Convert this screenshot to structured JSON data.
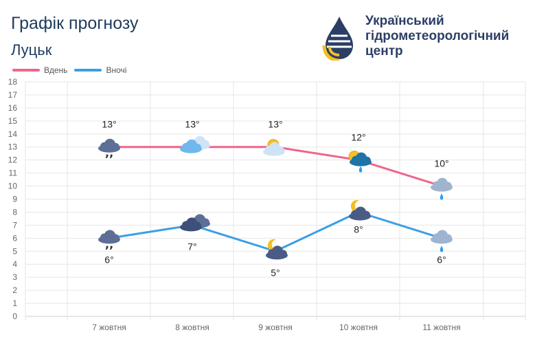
{
  "header": {
    "title": "Графік прогнозу",
    "city": "Луцьк"
  },
  "logo": {
    "line1": "Український",
    "line2": "гідрометеорологічний",
    "line3": "центр"
  },
  "chart_data": {
    "type": "line",
    "categories": [
      "7 жовтня",
      "8 жовтня",
      "9 жовтня",
      "10 жовтня",
      "11 жовтня"
    ],
    "series": [
      {
        "name": "Вдень",
        "color": "#f0648a",
        "values": [
          13,
          13,
          13,
          12,
          10
        ],
        "labels": [
          "13°",
          "13°",
          "13°",
          "12°",
          "10°"
        ],
        "icons": [
          "cloud-drizzle-icon",
          "cloud-sun-icon",
          "partly-cloudy-icon",
          "sun-cloud-rain-icon",
          "cloud-rain-icon"
        ]
      },
      {
        "name": "Вночі",
        "color": "#3b9fe4",
        "values": [
          6,
          7,
          5,
          8,
          6
        ],
        "labels": [
          "6°",
          "7°",
          "5°",
          "8°",
          "6°"
        ],
        "icons": [
          "cloud-drizzle-icon",
          "cloud-icon",
          "moon-cloud-icon",
          "moon-cloud-icon",
          "cloud-rain-icon"
        ]
      }
    ],
    "ylim": [
      0,
      18
    ],
    "yticks": [
      "0",
      "1",
      "2",
      "3",
      "4",
      "5",
      "6",
      "7",
      "8",
      "9",
      "10",
      "11",
      "12",
      "13",
      "14",
      "15",
      "16",
      "17",
      "18"
    ],
    "grid": true,
    "legend_position": "top-left"
  }
}
